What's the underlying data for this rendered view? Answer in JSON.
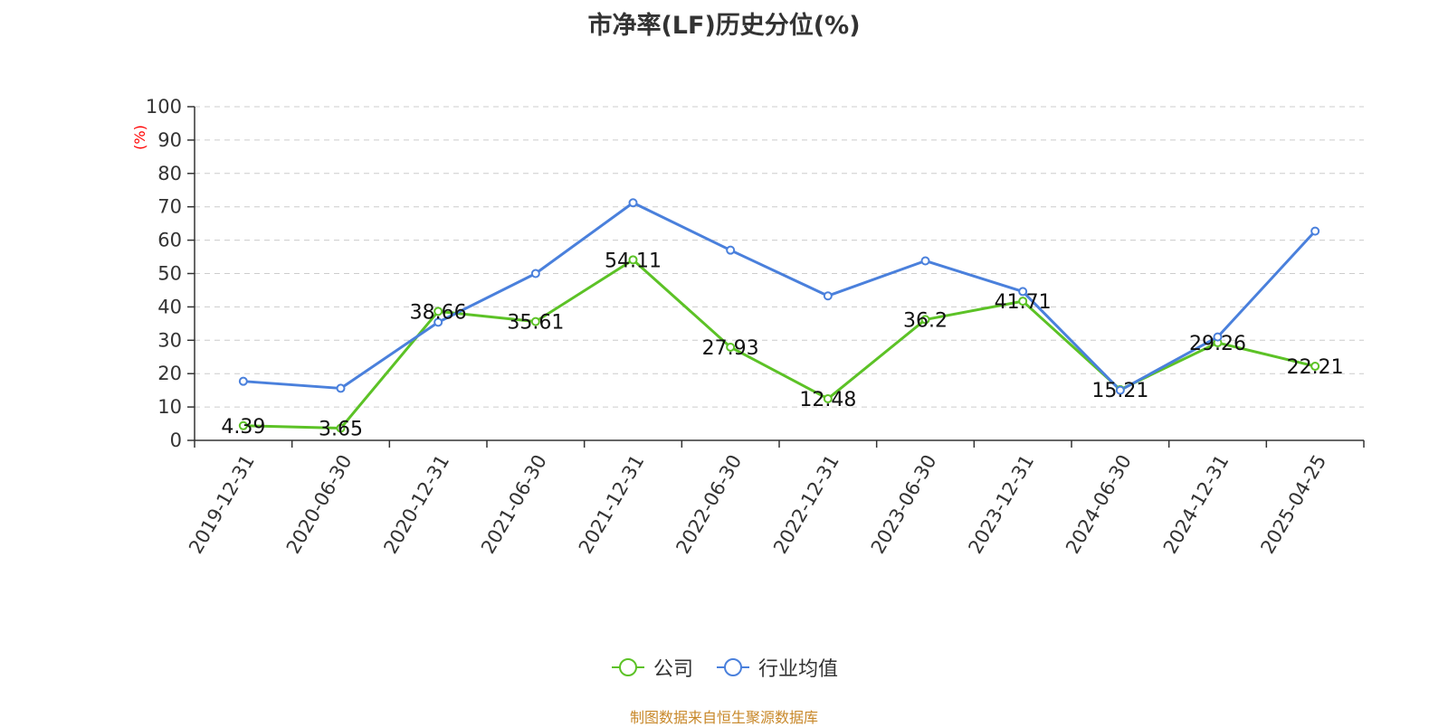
{
  "title": "市净率(LF)历史分位(%)",
  "source_note": "制图数据来自恒生聚源数据库",
  "colors": {
    "company": "#5cc226",
    "industry": "#4a80dc",
    "axis": "#333333",
    "grid": "#cccccc",
    "unit": "#ff0000",
    "source": "#c8882a"
  },
  "chart_data": {
    "type": "line",
    "title": "市净率(LF)历史分位(%)",
    "ylabel": "(%)",
    "xlabel": "",
    "ylim": [
      0,
      100
    ],
    "yticks": [
      0,
      10,
      20,
      30,
      40,
      50,
      60,
      70,
      80,
      90,
      100
    ],
    "grid": true,
    "legend_position": "bottom-center",
    "categories": [
      "2019-12-31",
      "2020-06-30",
      "2020-12-31",
      "2021-06-30",
      "2021-12-31",
      "2022-06-30",
      "2022-12-31",
      "2023-06-30",
      "2023-12-31",
      "2024-06-30",
      "2024-12-31",
      "2025-04-25"
    ],
    "series": [
      {
        "name": "公司",
        "color": "#5cc226",
        "values": [
          4.39,
          3.65,
          38.66,
          35.61,
          54.11,
          27.93,
          12.48,
          36.2,
          41.71,
          15.21,
          29.26,
          22.21
        ],
        "labels": [
          "4.39",
          "3.65",
          "38.66",
          "35.61",
          "54.11",
          "27.93",
          "12.48",
          "36.2",
          "41.71",
          "15.21",
          "29.26",
          "22.21"
        ]
      },
      {
        "name": "行业均值",
        "color": "#4a80dc",
        "values": [
          17.7,
          15.6,
          35.4,
          50.0,
          71.2,
          57.0,
          43.3,
          53.8,
          44.6,
          15.0,
          31.0,
          62.7
        ]
      }
    ]
  }
}
